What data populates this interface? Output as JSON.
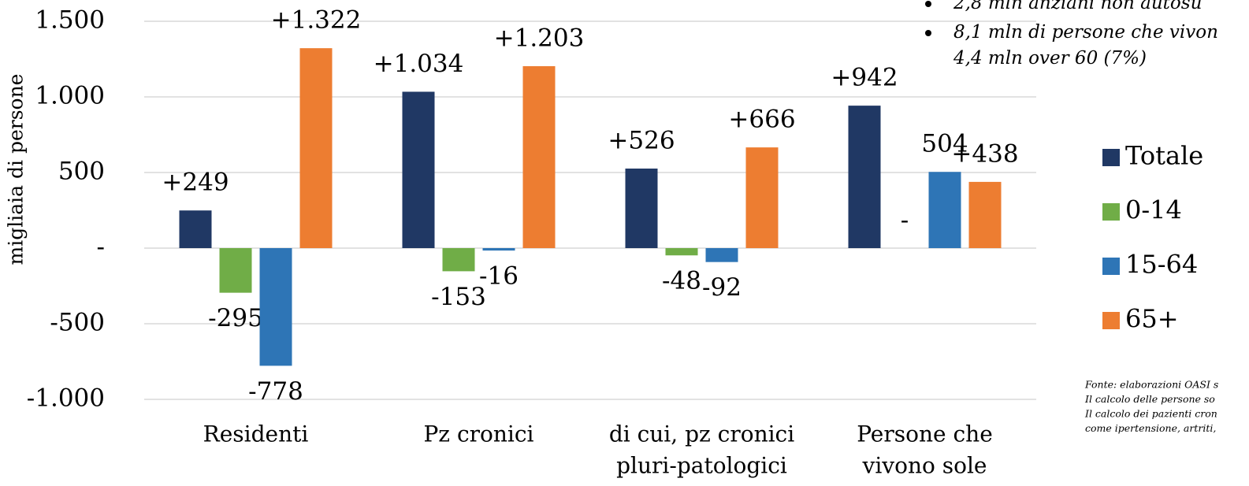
{
  "chart_data": {
    "type": "bar",
    "y_label": "migliaia di persone",
    "categories": [
      [
        "Residenti"
      ],
      [
        "Pz cronici"
      ],
      [
        "di cui, pz cronici",
        "pluri-patologici"
      ],
      [
        "Persone che",
        "vivono sole"
      ]
    ],
    "series": [
      {
        "name": "Totale",
        "color": "#203864",
        "values": [
          249,
          1034,
          526,
          942
        ],
        "value_labels": [
          "+249",
          "+1.034",
          "+526",
          "+942"
        ]
      },
      {
        "name": "0-14",
        "color": "#70ad47",
        "values": [
          -295,
          -153,
          -48,
          0
        ],
        "value_labels": [
          "-295",
          "-153",
          "-48",
          "-"
        ]
      },
      {
        "name": "15-64",
        "color": "#2e75b6",
        "values": [
          -778,
          -16,
          -92,
          504
        ],
        "value_labels": [
          "-778",
          "-16",
          "-92",
          "504"
        ]
      },
      {
        "name": "65+",
        "color": "#ed7d31",
        "values": [
          1322,
          1203,
          666,
          438
        ],
        "value_labels": [
          "+1.322",
          "+1.203",
          "+666",
          "+438"
        ]
      }
    ],
    "ylim": [
      -1000,
      1500
    ],
    "yticks": [
      {
        "value": -1000,
        "label": "-1.000"
      },
      -500,
      {
        "value": 0,
        "label": "-"
      },
      500,
      {
        "value": 1000,
        "label": "1.000"
      },
      {
        "value": 1500,
        "label": "1.500"
      }
    ],
    "grid": true,
    "legend": "right",
    "notes": [
      "2,8 mln anziani non autosu",
      "8,1 mln di persone che vivon",
      "4,4 mln over 60 (7%)"
    ],
    "footnotes": [
      "Fonte: elaborazioni OASI s",
      "Il calcolo delle persone so",
      "Il calcolo dei pazienti cron",
      "come ipertensione, artriti,"
    ]
  }
}
